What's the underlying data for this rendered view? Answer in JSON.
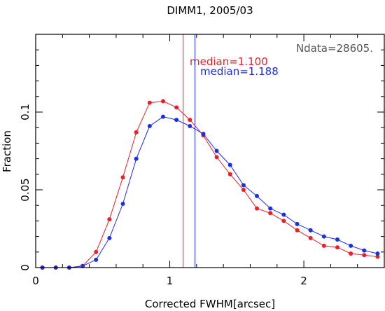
{
  "chart_data": {
    "type": "line",
    "title": "DIMM1, 2005/03",
    "xlabel": "Corrected FWHM[arcsec]",
    "ylabel": "Fraction",
    "xlim": [
      0,
      2.6
    ],
    "ylim": [
      0,
      0.15
    ],
    "x_ticks": [
      0,
      1,
      2
    ],
    "y_ticks": [
      0,
      0.05,
      0.1
    ],
    "x_tick_labels": [
      "0",
      "1",
      "2"
    ],
    "y_tick_labels": [
      "0",
      "0.05",
      "0.1"
    ],
    "grid": false,
    "annotation": "Ndata=28605.",
    "medians": [
      {
        "label": "median=1.100",
        "value": 1.1,
        "color": "#e8202a"
      },
      {
        "label": "median=1.188",
        "value": 1.188,
        "color": "#1e2ee0"
      }
    ],
    "series": [
      {
        "color": "#e8202a",
        "x": [
          0.05,
          0.15,
          0.25,
          0.35,
          0.45,
          0.55,
          0.65,
          0.75,
          0.85,
          0.95,
          1.05,
          1.15,
          1.25,
          1.35,
          1.45,
          1.55,
          1.65,
          1.75,
          1.85,
          1.95,
          2.05,
          2.15,
          2.25,
          2.35,
          2.45,
          2.55
        ],
        "values": [
          0,
          0,
          0,
          0.001,
          0.01,
          0.031,
          0.058,
          0.087,
          0.106,
          0.107,
          0.103,
          0.095,
          0.085,
          0.071,
          0.06,
          0.05,
          0.038,
          0.035,
          0.03,
          0.024,
          0.019,
          0.014,
          0.013,
          0.009,
          0.008,
          0.007
        ]
      },
      {
        "color": "#1e2ee0",
        "x": [
          0.05,
          0.15,
          0.25,
          0.35,
          0.45,
          0.55,
          0.65,
          0.75,
          0.85,
          0.95,
          1.05,
          1.15,
          1.25,
          1.35,
          1.45,
          1.55,
          1.65,
          1.75,
          1.85,
          1.95,
          2.05,
          2.15,
          2.25,
          2.35,
          2.45,
          2.55
        ],
        "values": [
          0,
          0,
          0,
          0.001,
          0.005,
          0.019,
          0.041,
          0.07,
          0.091,
          0.097,
          0.095,
          0.091,
          0.086,
          0.075,
          0.066,
          0.053,
          0.046,
          0.038,
          0.034,
          0.028,
          0.024,
          0.02,
          0.018,
          0.014,
          0.011,
          0.009
        ]
      }
    ]
  }
}
